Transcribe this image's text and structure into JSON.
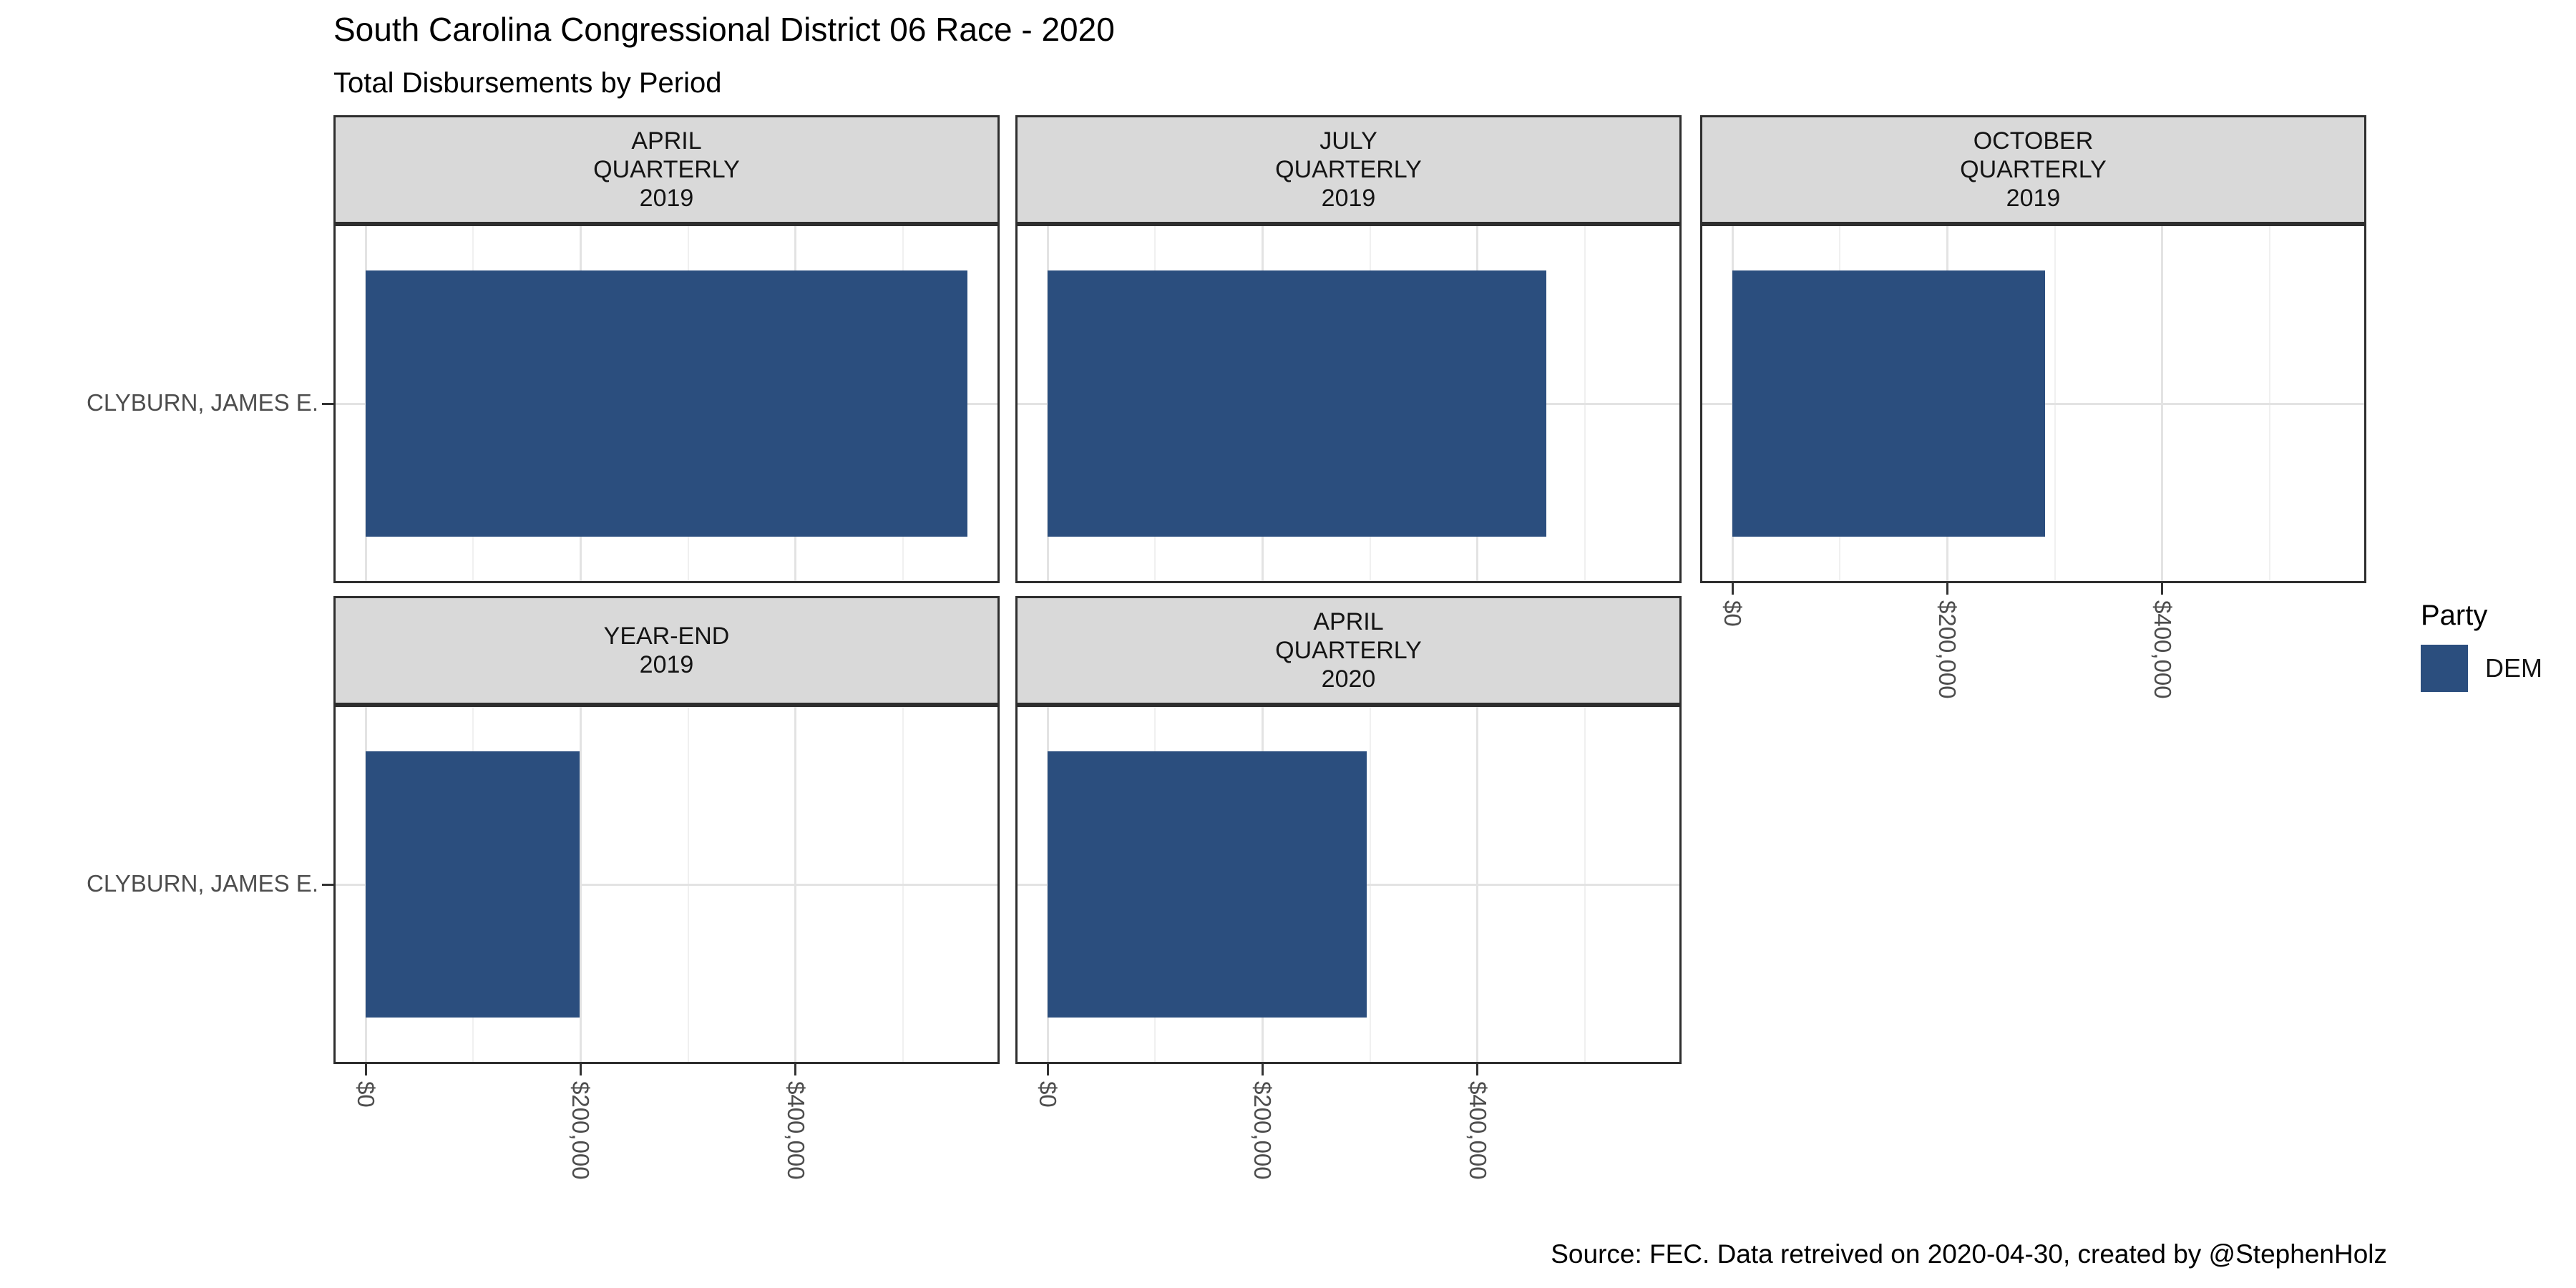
{
  "header": {
    "title": "South Carolina Congressional District 06 Race - 2020",
    "subtitle": "Total Disbursements by Period"
  },
  "caption": "Source: FEC. Data retreived on 2020-04-30, created by @StephenHolz",
  "legend": {
    "title": "Party",
    "items": [
      {
        "label": "DEM",
        "color": "#2B4E7E"
      }
    ],
    "position": "right"
  },
  "chart_data": {
    "type": "bar",
    "orientation": "horizontal",
    "title": "South Carolina Congressional District 06 Race - 2020",
    "subtitle": "Total Disbursements by Period",
    "y_category": "CLYBURN, JAMES E.",
    "series_name": "DEM",
    "bar_color": "#2B4E7E",
    "facets": [
      {
        "period": "APRIL QUARTERLY 2019",
        "strip_lines": [
          "APRIL",
          "QUARTERLY",
          "2019"
        ],
        "value": 560000
      },
      {
        "period": "JULY QUARTERLY 2019",
        "strip_lines": [
          "JULY",
          "QUARTERLY",
          "2019"
        ],
        "value": 464000
      },
      {
        "period": "OCTOBER QUARTERLY 2019",
        "strip_lines": [
          "OCTOBER",
          "QUARTERLY",
          "2019"
        ],
        "value": 291000
      },
      {
        "period": "YEAR-END 2019",
        "strip_lines": [
          "YEAR-END",
          "2019"
        ],
        "value": 199000
      },
      {
        "period": "APRIL QUARTERLY 2020",
        "strip_lines": [
          "APRIL",
          "QUARTERLY",
          "2020"
        ],
        "value": 297000
      }
    ],
    "xlim": [
      0,
      560000
    ],
    "x_ticks": [
      {
        "label": "$0",
        "value": 0
      },
      {
        "label": "$200,000",
        "value": 200000
      },
      {
        "label": "$400,000",
        "value": 400000
      }
    ],
    "x_minor_ticks": [
      100000,
      300000,
      500000
    ],
    "grid": true,
    "strip_background": "#d9d9d9",
    "panel_border_color": "#2e2e2e",
    "axis_text_color": "#4d4d4d"
  }
}
